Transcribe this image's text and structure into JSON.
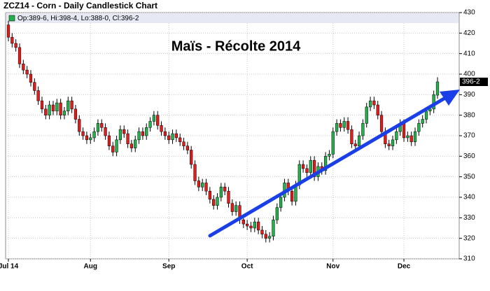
{
  "chart_data": {
    "type": "candlestick",
    "title": "ZCZ14 - Corn - Daily Candlestick Chart",
    "legend_text": "Op:389-6, Hi:398-4, Lo:388-0, Cl:396-2",
    "annotation": "Maïs - Récolte 2014",
    "last_price": {
      "value": 396.25,
      "label": "396-2"
    },
    "up_color": "#22b14c",
    "down_color": "#e31b1b",
    "annotation_color": "#1a3fe6",
    "grid": true,
    "ylim": [
      310,
      430
    ],
    "yticks": [
      310,
      320,
      330,
      340,
      350,
      360,
      370,
      380,
      390,
      400,
      410,
      420,
      430
    ],
    "categories": [
      "Jul 14",
      null,
      null,
      null,
      null,
      null,
      null,
      null,
      null,
      null,
      null,
      null,
      null,
      null,
      null,
      null,
      null,
      null,
      null,
      null,
      null,
      null,
      "Aug",
      null,
      null,
      null,
      null,
      null,
      null,
      null,
      null,
      null,
      null,
      null,
      null,
      null,
      null,
      null,
      null,
      null,
      null,
      null,
      null,
      "Sep",
      null,
      null,
      null,
      null,
      null,
      null,
      null,
      null,
      null,
      null,
      null,
      null,
      null,
      null,
      null,
      null,
      null,
      null,
      null,
      null,
      "Oct",
      null,
      null,
      null,
      null,
      null,
      null,
      null,
      null,
      null,
      null,
      null,
      null,
      null,
      null,
      null,
      null,
      null,
      null,
      null,
      null,
      null,
      null,
      "Nov",
      null,
      null,
      null,
      null,
      null,
      null,
      null,
      null,
      null,
      null,
      null,
      null,
      null,
      null,
      null,
      null,
      null,
      null,
      "Dec",
      null,
      null,
      null,
      null,
      null,
      null,
      null,
      null,
      null
    ],
    "open": [
      424,
      418,
      415,
      413,
      405,
      402,
      400,
      396,
      392,
      387,
      383,
      380,
      385,
      382,
      386,
      380,
      382,
      387,
      383,
      378,
      372,
      370,
      368,
      369,
      372,
      376,
      374,
      370,
      365,
      362,
      368,
      373,
      371,
      366,
      364,
      368,
      372,
      370,
      374,
      377,
      380,
      375,
      372,
      370,
      368,
      371,
      369,
      367,
      365,
      363,
      356,
      348,
      345,
      347,
      343,
      339,
      336,
      340,
      345,
      343,
      337,
      333,
      336,
      329,
      327,
      326,
      325,
      328,
      324,
      322,
      320,
      321,
      329,
      335,
      340,
      347,
      343,
      338,
      346,
      356,
      354,
      352,
      358,
      350,
      355,
      353,
      360,
      361,
      372,
      376,
      374,
      377,
      373,
      366,
      365,
      370,
      376,
      384,
      387,
      385,
      380,
      372,
      366,
      365,
      368,
      372,
      376,
      369,
      370,
      367,
      372,
      376,
      378,
      382,
      383,
      389.75
    ],
    "high": [
      426,
      420,
      417,
      415,
      407,
      404,
      402,
      398,
      394,
      389,
      385,
      387,
      387,
      388,
      388,
      384,
      389,
      389,
      385,
      380,
      374,
      372,
      371,
      374,
      378,
      378,
      376,
      372,
      367,
      370,
      375,
      375,
      373,
      368,
      370,
      374,
      374,
      376,
      379,
      382,
      382,
      377,
      374,
      372,
      373,
      373,
      371,
      369,
      367,
      365,
      358,
      350,
      349,
      349,
      345,
      341,
      342,
      347,
      347,
      345,
      339,
      338,
      338,
      331,
      329,
      328,
      330,
      330,
      326,
      324,
      323,
      331,
      337,
      342,
      349,
      349,
      345,
      348,
      358,
      358,
      356,
      360,
      360,
      357,
      357,
      362,
      363,
      374,
      378,
      378,
      379,
      379,
      375,
      368,
      372,
      378,
      386,
      389,
      389,
      387,
      382,
      374,
      368,
      370,
      374,
      378,
      378,
      372,
      372,
      374,
      378,
      380,
      384,
      385,
      392,
      398.5
    ],
    "low": [
      416,
      413,
      411,
      403,
      400,
      398,
      394,
      390,
      385,
      381,
      378,
      378,
      380,
      380,
      378,
      378,
      380,
      381,
      376,
      370,
      368,
      366,
      366,
      367,
      370,
      372,
      368,
      363,
      360,
      360,
      366,
      369,
      364,
      362,
      362,
      366,
      368,
      368,
      372,
      375,
      373,
      370,
      368,
      366,
      366,
      367,
      365,
      363,
      361,
      354,
      346,
      343,
      343,
      341,
      337,
      334,
      334,
      338,
      341,
      335,
      331,
      331,
      327,
      325,
      324,
      323,
      323,
      322,
      320,
      318,
      318,
      319,
      327,
      333,
      338,
      341,
      336,
      336,
      344,
      352,
      350,
      350,
      348,
      348,
      351,
      351,
      358,
      359,
      370,
      372,
      372,
      371,
      364,
      363,
      363,
      368,
      374,
      382,
      383,
      378,
      370,
      364,
      363,
      363,
      366,
      370,
      367,
      367,
      365,
      365,
      370,
      374,
      376,
      380,
      381,
      388
    ],
    "close": [
      418,
      415,
      413,
      405,
      402,
      400,
      396,
      392,
      387,
      383,
      380,
      385,
      382,
      386,
      380,
      382,
      387,
      383,
      378,
      372,
      370,
      368,
      369,
      372,
      376,
      374,
      370,
      365,
      362,
      368,
      373,
      371,
      366,
      364,
      368,
      372,
      370,
      374,
      377,
      380,
      375,
      372,
      370,
      368,
      371,
      369,
      367,
      365,
      363,
      356,
      348,
      345,
      347,
      343,
      339,
      336,
      340,
      345,
      343,
      337,
      333,
      336,
      329,
      327,
      326,
      325,
      328,
      324,
      322,
      320,
      321,
      329,
      335,
      340,
      347,
      343,
      338,
      346,
      356,
      354,
      352,
      358,
      350,
      355,
      353,
      360,
      361,
      372,
      376,
      374,
      377,
      373,
      366,
      365,
      370,
      376,
      384,
      387,
      385,
      380,
      372,
      366,
      365,
      368,
      372,
      376,
      369,
      370,
      367,
      372,
      376,
      378,
      382,
      383,
      390,
      396.25
    ]
  }
}
